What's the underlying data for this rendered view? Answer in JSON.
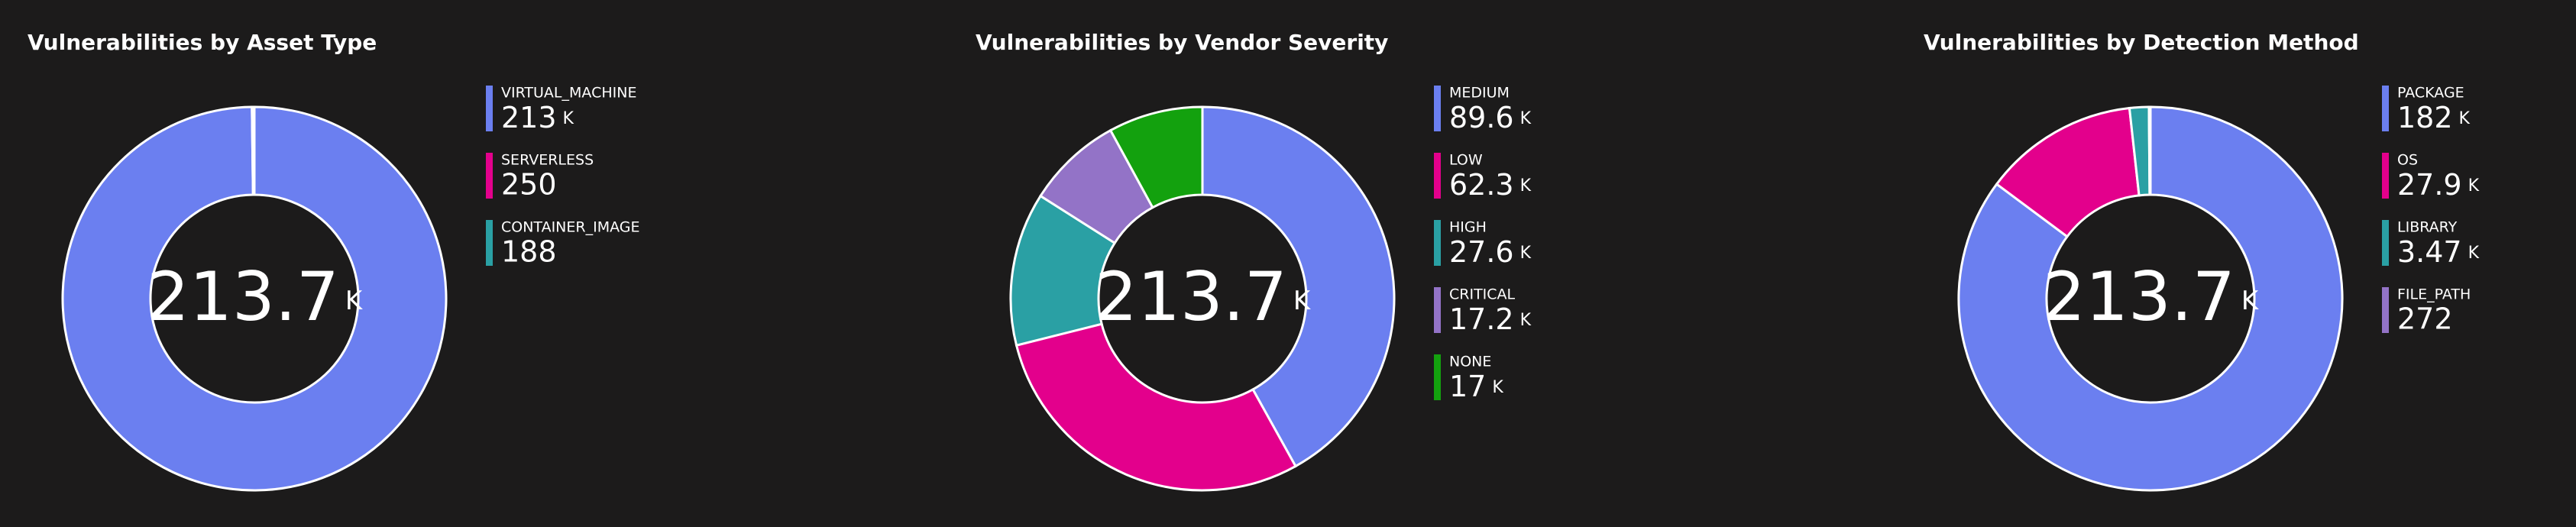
{
  "chart_data": [
    {
      "type": "pie",
      "title": "Vulnerabilities by Asset Type",
      "total": 213700,
      "total_label": "213.7 K",
      "categories": [
        "VIRTUAL_MACHINE",
        "SERVERLESS",
        "CONTAINER_IMAGE"
      ],
      "values": [
        213000,
        250,
        188
      ],
      "value_labels": [
        "213 K",
        "250",
        "188"
      ],
      "colors": [
        "#6b7ff0",
        "#e3008c",
        "#2aa0a4"
      ]
    },
    {
      "type": "pie",
      "title": "Vulnerabilities by Vendor Severity",
      "total": 213700,
      "total_label": "213.7 K",
      "categories": [
        "MEDIUM",
        "LOW",
        "HIGH",
        "CRITICAL",
        "NONE"
      ],
      "values": [
        89600,
        62300,
        27600,
        17200,
        17000
      ],
      "value_labels": [
        "89.6 K",
        "62.3 K",
        "27.6 K",
        "17.2 K",
        "17 K"
      ],
      "colors": [
        "#6b7ff0",
        "#e3008c",
        "#2aa0a4",
        "#9373c7",
        "#13a10e"
      ]
    },
    {
      "type": "pie",
      "title": "Vulnerabilities by Detection Method",
      "total": 213700,
      "total_label": "213.7 K",
      "categories": [
        "PACKAGE",
        "OS",
        "LIBRARY",
        "FILE_PATH"
      ],
      "values": [
        182000,
        27900,
        3470,
        272
      ],
      "value_labels": [
        "182 K",
        "27.9 K",
        "3.47 K",
        "272"
      ],
      "colors": [
        "#6b7ff0",
        "#e3008c",
        "#2aa0a4",
        "#9373c7"
      ]
    }
  ]
}
